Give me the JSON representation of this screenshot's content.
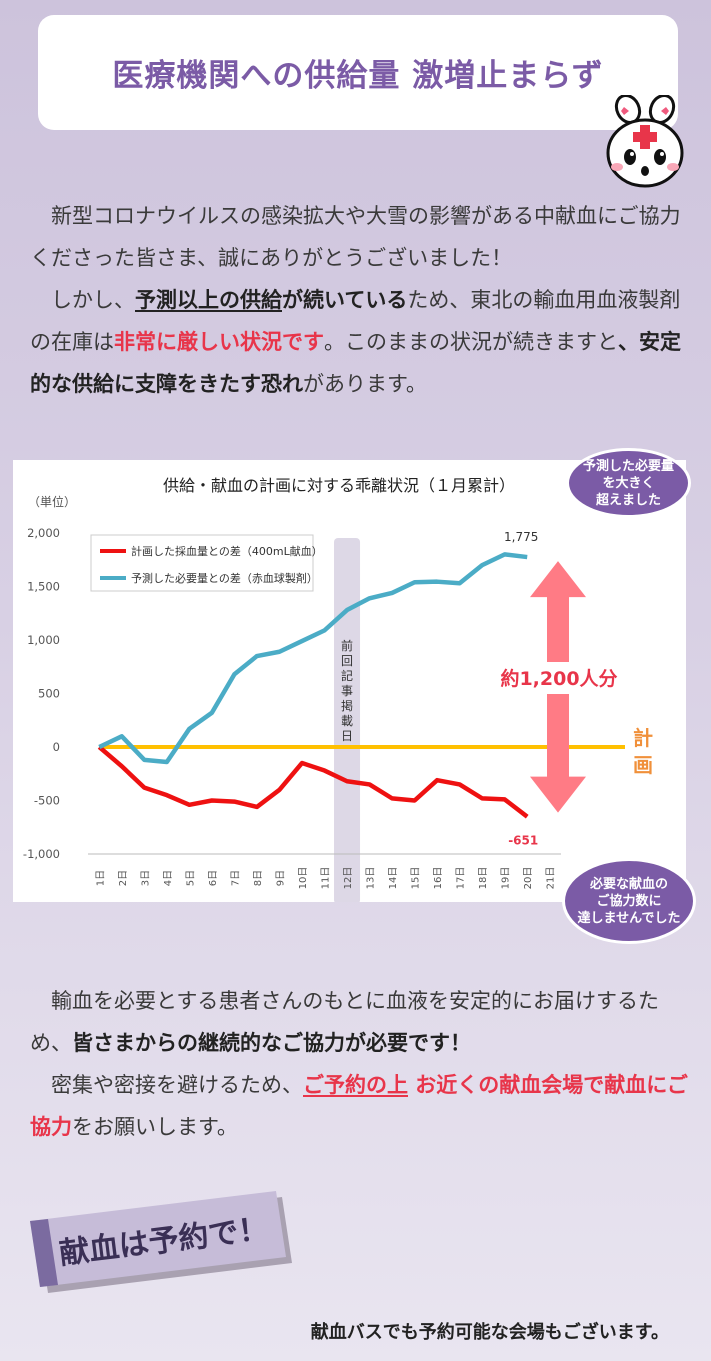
{
  "header": {
    "title": "医療機関への供給量 激増止まらず"
  },
  "intro": {
    "p1": "新型コロナウイルスの感染拡大や大雪の影響がある中献血にご協力くださった皆さま、誠にありがとうございました！",
    "p2_a": "しかし、",
    "p2_b": "予測以上の供給",
    "p2_c": "が続いている",
    "p2_d": "ため、東北の輸血用血液製剤の在庫は",
    "p2_e": "非常に厳しい状況です",
    "p2_f": "。このままの状況が続きますと",
    "p2_g": "、安定的な供給に支障をきたす恐れ",
    "p2_h": "があります。"
  },
  "chart_data": {
    "type": "line",
    "title": "供給・献血の計画に対する乖離状況（１月累計）",
    "ylabel": "（単位）",
    "ylim": [
      -1000,
      2000
    ],
    "yticks": [
      {
        "value": 2000,
        "label": "2,000"
      },
      {
        "value": 1500,
        "label": "1,500"
      },
      {
        "value": 1000,
        "label": "1,000"
      },
      {
        "value": 500,
        "label": "500"
      },
      {
        "value": 0,
        "label": "0"
      },
      {
        "value": -500,
        "label": "-500"
      },
      {
        "value": -1000,
        "label": "-1,000"
      }
    ],
    "categories": [
      "1日",
      "2日",
      "3日",
      "4日",
      "5日",
      "6日",
      "7日",
      "8日",
      "9日",
      "10日",
      "11日",
      "12日",
      "13日",
      "14日",
      "15日",
      "16日",
      "17日",
      "18日",
      "19日",
      "20日",
      "21日"
    ],
    "series": [
      {
        "name": "計画した採血量との差（400mL献血）",
        "color": "#ee1111",
        "values": [
          0,
          -180,
          -380,
          -450,
          -540,
          -500,
          -510,
          -560,
          -400,
          -150,
          -220,
          -320,
          -350,
          -480,
          -500,
          -310,
          -350,
          -480,
          -490,
          -651,
          null
        ]
      },
      {
        "name": "予測した必要量との差（赤血球製剤）",
        "color": "#4bacc6",
        "values": [
          0,
          100,
          -120,
          -140,
          170,
          320,
          680,
          850,
          890,
          990,
          1090,
          1280,
          1390,
          1440,
          1540,
          1545,
          1530,
          1700,
          1800,
          1775,
          null
        ]
      }
    ],
    "plan_line": {
      "value": 0,
      "label": "計画",
      "color": "#ffc000"
    },
    "highlight_day": {
      "category": "12日",
      "label": "前回記事掲載日"
    },
    "annotations": {
      "end_blue": "1,775",
      "end_red": "-651",
      "gap": "約1,200人分"
    },
    "legend": "top-left",
    "grid": false
  },
  "bubbles": {
    "top": [
      "予測した必要量",
      "を大きく",
      "超えました"
    ],
    "bottom": [
      "必要な献血の",
      "ご協力数に",
      "達しませんでした"
    ]
  },
  "outro": {
    "p1_a": "輸血を必要とする患者さんのもとに血液を安定的にお届けするため、",
    "p1_b": "皆さまからの継続的なご協力が必要です！",
    "p2_a": "密集や密接を避けるため、",
    "p2_b": "ご予約の上",
    "p2_c": " お近くの献血会場で献血にご協力",
    "p2_d": "をお願いします。"
  },
  "tag": {
    "text": "献血は予約で！"
  },
  "footer": {
    "note": "献血バスでも予約可能な会場もございます。"
  }
}
